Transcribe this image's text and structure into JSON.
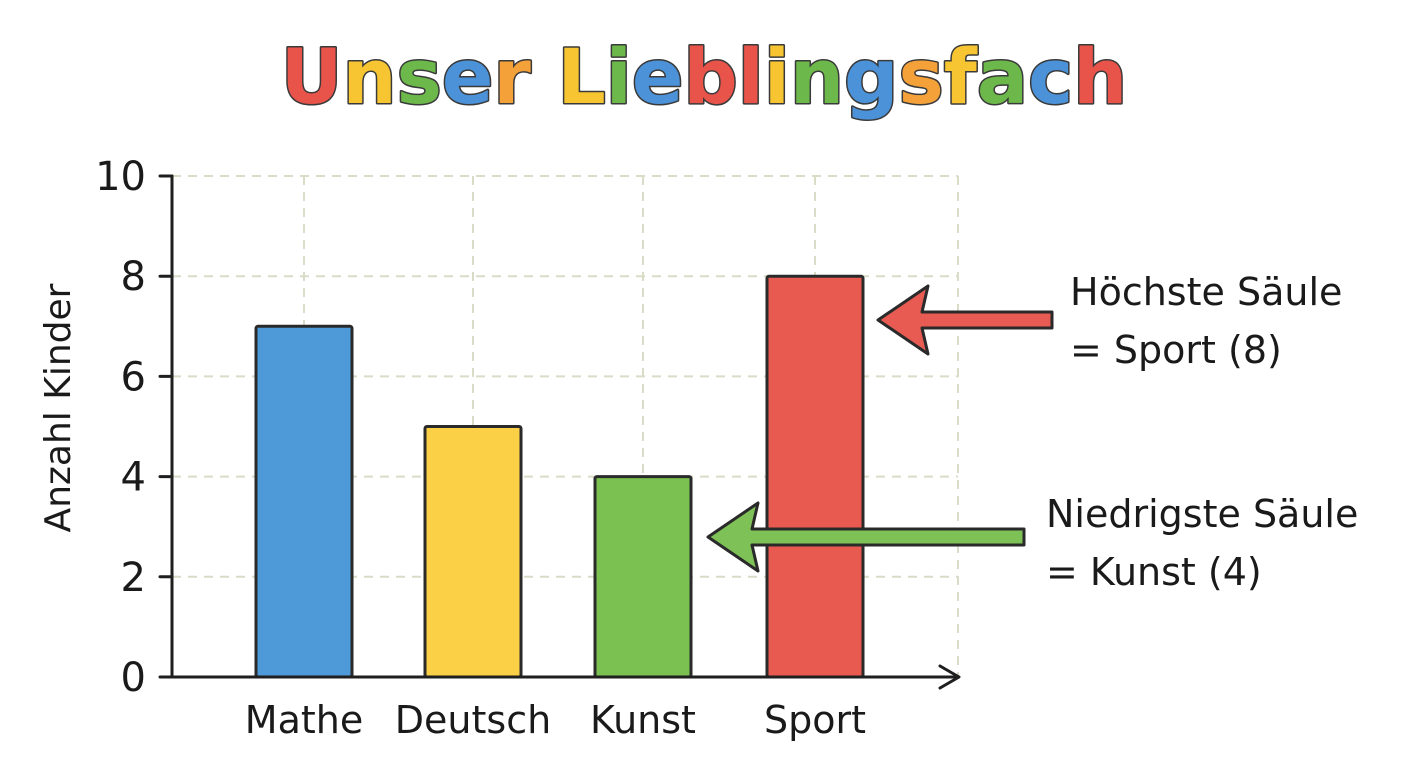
{
  "colors": {
    "title_letters": [
      "#e8534a",
      "#f6c531",
      "#6db84b",
      "#4c92d9",
      "#f4a13a",
      "#f6c531",
      "#6db84b",
      "#4c92d9",
      "#e8534a"
    ],
    "bars": [
      "#4e9ad8",
      "#fbd046",
      "#7bc152",
      "#e85a50"
    ],
    "highest_arrow": "#e75b52",
    "lowest_arrow": "#7ec257"
  },
  "chart_data": {
    "type": "bar",
    "title": "Unser Lieblingsfach",
    "xlabel": "",
    "ylabel": "Anzahl Kinder",
    "categories": [
      "Mathe",
      "Deutsch",
      "Kunst",
      "Sport"
    ],
    "values": [
      7,
      5,
      4,
      8
    ],
    "ylim": [
      0,
      10
    ],
    "yticks": [
      "0",
      "2",
      "4",
      "6",
      "8",
      "10"
    ],
    "grid": true,
    "annotations": [
      {
        "line1": "Höchste Säule",
        "line2": "= Sport (8)",
        "category": "Sport",
        "value": 8
      },
      {
        "line1": "Niedrigste Säule",
        "line2": "= Kunst (4)",
        "category": "Kunst",
        "value": 4
      }
    ]
  }
}
